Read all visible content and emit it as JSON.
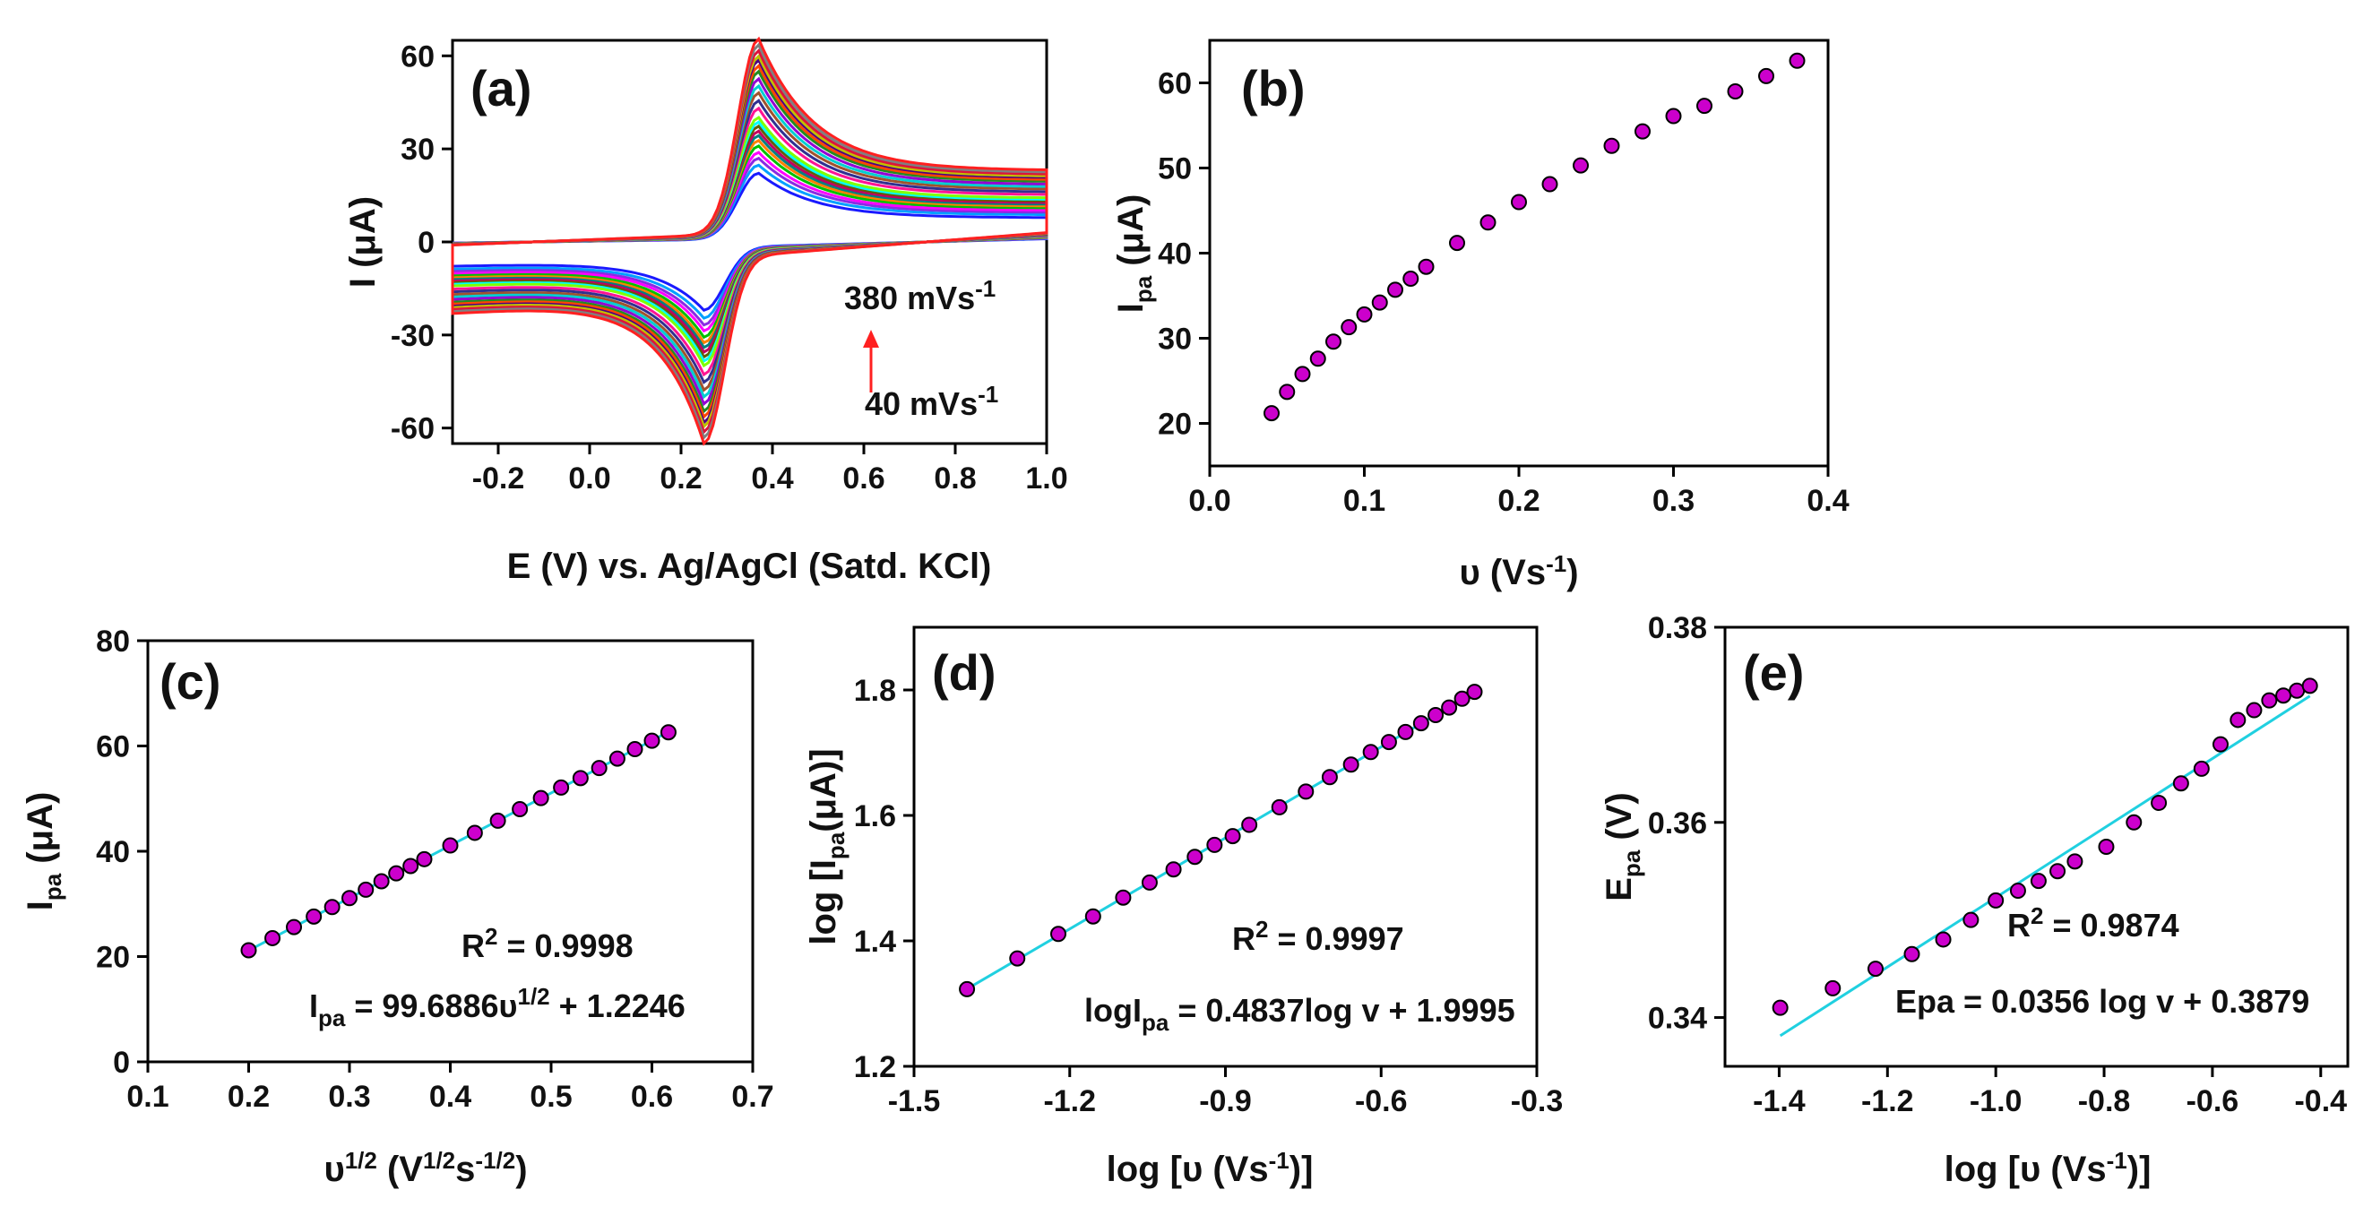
{
  "chart_data": [
    {
      "id": "a",
      "type": "line",
      "panel_label": "(a)",
      "xlabel": "E (V) vs. Ag/AgCl (Satd. KCl)",
      "ylabel_main": "I (",
      "ylabel_mu": "μ",
      "ylabel_end": "A)",
      "xlim": [
        -0.3,
        1.0
      ],
      "ylim": [
        -65,
        65
      ],
      "xticks": [
        -0.2,
        0.0,
        0.2,
        0.4,
        0.6,
        0.8,
        1.0
      ],
      "xtick_labels": [
        "-0.2",
        "0.0",
        "0.2",
        "0.4",
        "0.6",
        "0.8",
        "1.0"
      ],
      "yticks": [
        -60,
        -30,
        0,
        30,
        60
      ],
      "ytick_labels": [
        "-60",
        "-30",
        "0",
        "30",
        "60"
      ],
      "scan_rates_Vs": [
        0.04,
        0.05,
        0.06,
        0.07,
        0.08,
        0.09,
        0.1,
        0.11,
        0.12,
        0.13,
        0.14,
        0.16,
        0.18,
        0.2,
        0.22,
        0.24,
        0.26,
        0.28,
        0.3,
        0.32,
        0.34,
        0.36,
        0.38
      ],
      "anodic_peak_E_V": 0.37,
      "cathodic_peak_E_V": 0.25,
      "series_colors": [
        "#1a1aff",
        "#00a0ff",
        "#8a2be2",
        "#ff00ff",
        "#00c000",
        "#ff8000",
        "#008080",
        "#c00060",
        "#606000",
        "#00ffff",
        "#7fff00",
        "#ff1493",
        "#303090",
        "#a0522d",
        "#00ced1",
        "#9400d3",
        "#228b22",
        "#ff4500",
        "#4b0082",
        "#c0c000",
        "#dc143c",
        "#808080",
        "#ff2020"
      ],
      "annotation_top_main": "380 mVs",
      "annotation_top_sup": "-1",
      "annotation_bottom_main": "40 mVs",
      "annotation_bottom_sup": "-1",
      "arrow_color": "#ff2020"
    },
    {
      "id": "b",
      "type": "scatter",
      "panel_label": "(b)",
      "xlabel_main": "υ (Vs",
      "xlabel_sup": "-1",
      "xlabel_end": ")",
      "ylabel_main": "I",
      "ylabel_sub": "pa",
      "ylabel_mu": " (μ",
      "ylabel_end": "A)",
      "xlim": [
        0.0,
        0.4
      ],
      "ylim": [
        15,
        65
      ],
      "xticks": [
        0.0,
        0.1,
        0.2,
        0.3,
        0.4
      ],
      "xtick_labels": [
        "0.0",
        "0.1",
        "0.2",
        "0.3",
        "0.4"
      ],
      "yticks": [
        20,
        30,
        40,
        50,
        60
      ],
      "ytick_labels": [
        "20",
        "30",
        "40",
        "50",
        "60"
      ],
      "x": [
        0.04,
        0.05,
        0.06,
        0.07,
        0.08,
        0.09,
        0.1,
        0.11,
        0.12,
        0.13,
        0.14,
        0.16,
        0.18,
        0.2,
        0.22,
        0.24,
        0.26,
        0.28,
        0.3,
        0.32,
        0.34,
        0.36,
        0.38
      ],
      "y": [
        21.2,
        23.7,
        25.8,
        27.6,
        29.6,
        31.3,
        32.8,
        34.2,
        35.7,
        37.0,
        38.4,
        41.2,
        43.6,
        46.0,
        48.1,
        50.3,
        52.6,
        54.3,
        56.1,
        57.3,
        59.0,
        60.8,
        62.6
      ],
      "marker_color": "#cc00cc"
    },
    {
      "id": "c",
      "type": "scatter",
      "panel_label": "(c)",
      "xlabel_main": "υ",
      "xlabel_sup1": "1/2",
      "xlabel_mid": " (V",
      "xlabel_sup2": "1/2",
      "xlabel_mid2": "s",
      "xlabel_sup3": "-1/2",
      "xlabel_end": ")",
      "ylabel_main": "I",
      "ylabel_sub": "pa",
      "ylabel_mu": " (μ",
      "ylabel_end": "A)",
      "xlim": [
        0.1,
        0.7
      ],
      "ylim": [
        0,
        80
      ],
      "xticks": [
        0.1,
        0.2,
        0.3,
        0.4,
        0.5,
        0.6,
        0.7
      ],
      "xtick_labels": [
        "0.1",
        "0.2",
        "0.3",
        "0.4",
        "0.5",
        "0.6",
        "0.7"
      ],
      "yticks": [
        0,
        20,
        40,
        60,
        80
      ],
      "ytick_labels": [
        "0",
        "20",
        "40",
        "60",
        "80"
      ],
      "x": [
        0.2,
        0.2236,
        0.2449,
        0.2646,
        0.2828,
        0.3,
        0.3162,
        0.3317,
        0.3464,
        0.3606,
        0.3742,
        0.4,
        0.4243,
        0.4472,
        0.469,
        0.4899,
        0.5099,
        0.5292,
        0.5477,
        0.5657,
        0.5831,
        0.6,
        0.6164
      ],
      "y": [
        21.2,
        23.5,
        25.6,
        27.6,
        29.4,
        31.1,
        32.7,
        34.3,
        35.8,
        37.2,
        38.5,
        41.1,
        43.5,
        45.8,
        48.0,
        50.1,
        52.1,
        53.9,
        55.8,
        57.6,
        59.4,
        61.0,
        62.6
      ],
      "fit": {
        "slope": 99.6886,
        "intercept": 1.2246,
        "x_range": [
          0.2,
          0.6164
        ],
        "color": "#20d0e0"
      },
      "annotation_r2_main": "R",
      "annotation_r2_sup": "2",
      "annotation_r2_end": " = 0.9998",
      "annotation_eq_main": "I",
      "annotation_eq_sub": "pa",
      "annotation_eq_mid": " = 99.6886υ",
      "annotation_eq_sup": "1/2",
      "annotation_eq_end": " + 1.2246",
      "marker_color": "#cc00cc"
    },
    {
      "id": "d",
      "type": "scatter",
      "panel_label": "(d)",
      "xlabel": "log [υ (Vs",
      "xlabel_sup": "-1",
      "xlabel_end": ")]",
      "ylabel_main": "log [I",
      "ylabel_sub": "pa",
      "ylabel_mu": "(μ",
      "ylabel_end": "A)]",
      "xlim": [
        -1.5,
        -0.3
      ],
      "ylim": [
        1.2,
        1.9
      ],
      "xticks": [
        -1.5,
        -1.2,
        -0.9,
        -0.6,
        -0.3
      ],
      "xtick_labels": [
        "-1.5",
        "-1.2",
        "-0.9",
        "-0.6",
        "-0.3"
      ],
      "yticks": [
        1.2,
        1.4,
        1.6,
        1.8
      ],
      "ytick_labels": [
        "1.2",
        "1.4",
        "1.6",
        "1.8"
      ],
      "x": [
        -1.398,
        -1.301,
        -1.222,
        -1.155,
        -1.097,
        -1.046,
        -1.0,
        -0.959,
        -0.921,
        -0.886,
        -0.854,
        -0.796,
        -0.745,
        -0.699,
        -0.658,
        -0.62,
        -0.585,
        -0.553,
        -0.523,
        -0.495,
        -0.469,
        -0.444,
        -0.42
      ],
      "y": [
        1.323,
        1.372,
        1.411,
        1.439,
        1.469,
        1.493,
        1.514,
        1.534,
        1.553,
        1.567,
        1.585,
        1.613,
        1.638,
        1.661,
        1.681,
        1.701,
        1.717,
        1.733,
        1.747,
        1.76,
        1.772,
        1.786,
        1.797
      ],
      "fit": {
        "slope": 0.4837,
        "intercept": 1.9995,
        "x_range": [
          -1.398,
          -0.42
        ],
        "color": "#20d0e0"
      },
      "annotation_r2_main": "R",
      "annotation_r2_sup": "2",
      "annotation_r2_end": " = 0.9997",
      "annotation_eq_main": "logI",
      "annotation_eq_sub": "pa",
      "annotation_eq_end": " = 0.4837log v + 1.9995",
      "marker_color": "#cc00cc"
    },
    {
      "id": "e",
      "type": "scatter",
      "panel_label": "(e)",
      "xlabel": "log [υ (Vs",
      "xlabel_sup": "-1",
      "xlabel_end": ")]",
      "ylabel_main": "E",
      "ylabel_sub": "pa",
      "ylabel_end": " (V)",
      "xlim": [
        -1.5,
        -0.35
      ],
      "ylim": [
        0.335,
        0.38
      ],
      "xticks": [
        -1.4,
        -1.2,
        -1.0,
        -0.8,
        -0.6,
        -0.4
      ],
      "xtick_labels": [
        "-1.4",
        "-1.2",
        "-1.0",
        "-0.8",
        "-0.6",
        "-0.4"
      ],
      "yticks": [
        0.34,
        0.36,
        0.38
      ],
      "ytick_labels": [
        "0.34",
        "0.36",
        "0.38"
      ],
      "x": [
        -1.398,
        -1.301,
        -1.222,
        -1.155,
        -1.097,
        -1.046,
        -1.0,
        -0.959,
        -0.921,
        -0.886,
        -0.854,
        -0.796,
        -0.745,
        -0.699,
        -0.658,
        -0.62,
        -0.585,
        -0.553,
        -0.523,
        -0.495,
        -0.469,
        -0.444,
        -0.42
      ],
      "y": [
        0.341,
        0.343,
        0.345,
        0.3465,
        0.348,
        0.35,
        0.352,
        0.353,
        0.354,
        0.355,
        0.356,
        0.3575,
        0.36,
        0.362,
        0.364,
        0.3655,
        0.368,
        0.3705,
        0.3715,
        0.3725,
        0.373,
        0.3735,
        0.374
      ],
      "fit": {
        "slope": 0.0356,
        "intercept": 0.3879,
        "x_range": [
          -1.398,
          -0.42
        ],
        "color": "#20d0e0"
      },
      "annotation_r2_main": "R",
      "annotation_r2_sup": "2",
      "annotation_r2_end": " = 0.9874",
      "annotation_eq": "Epa = 0.0356 log v + 0.3879",
      "marker_color": "#cc00cc"
    }
  ]
}
